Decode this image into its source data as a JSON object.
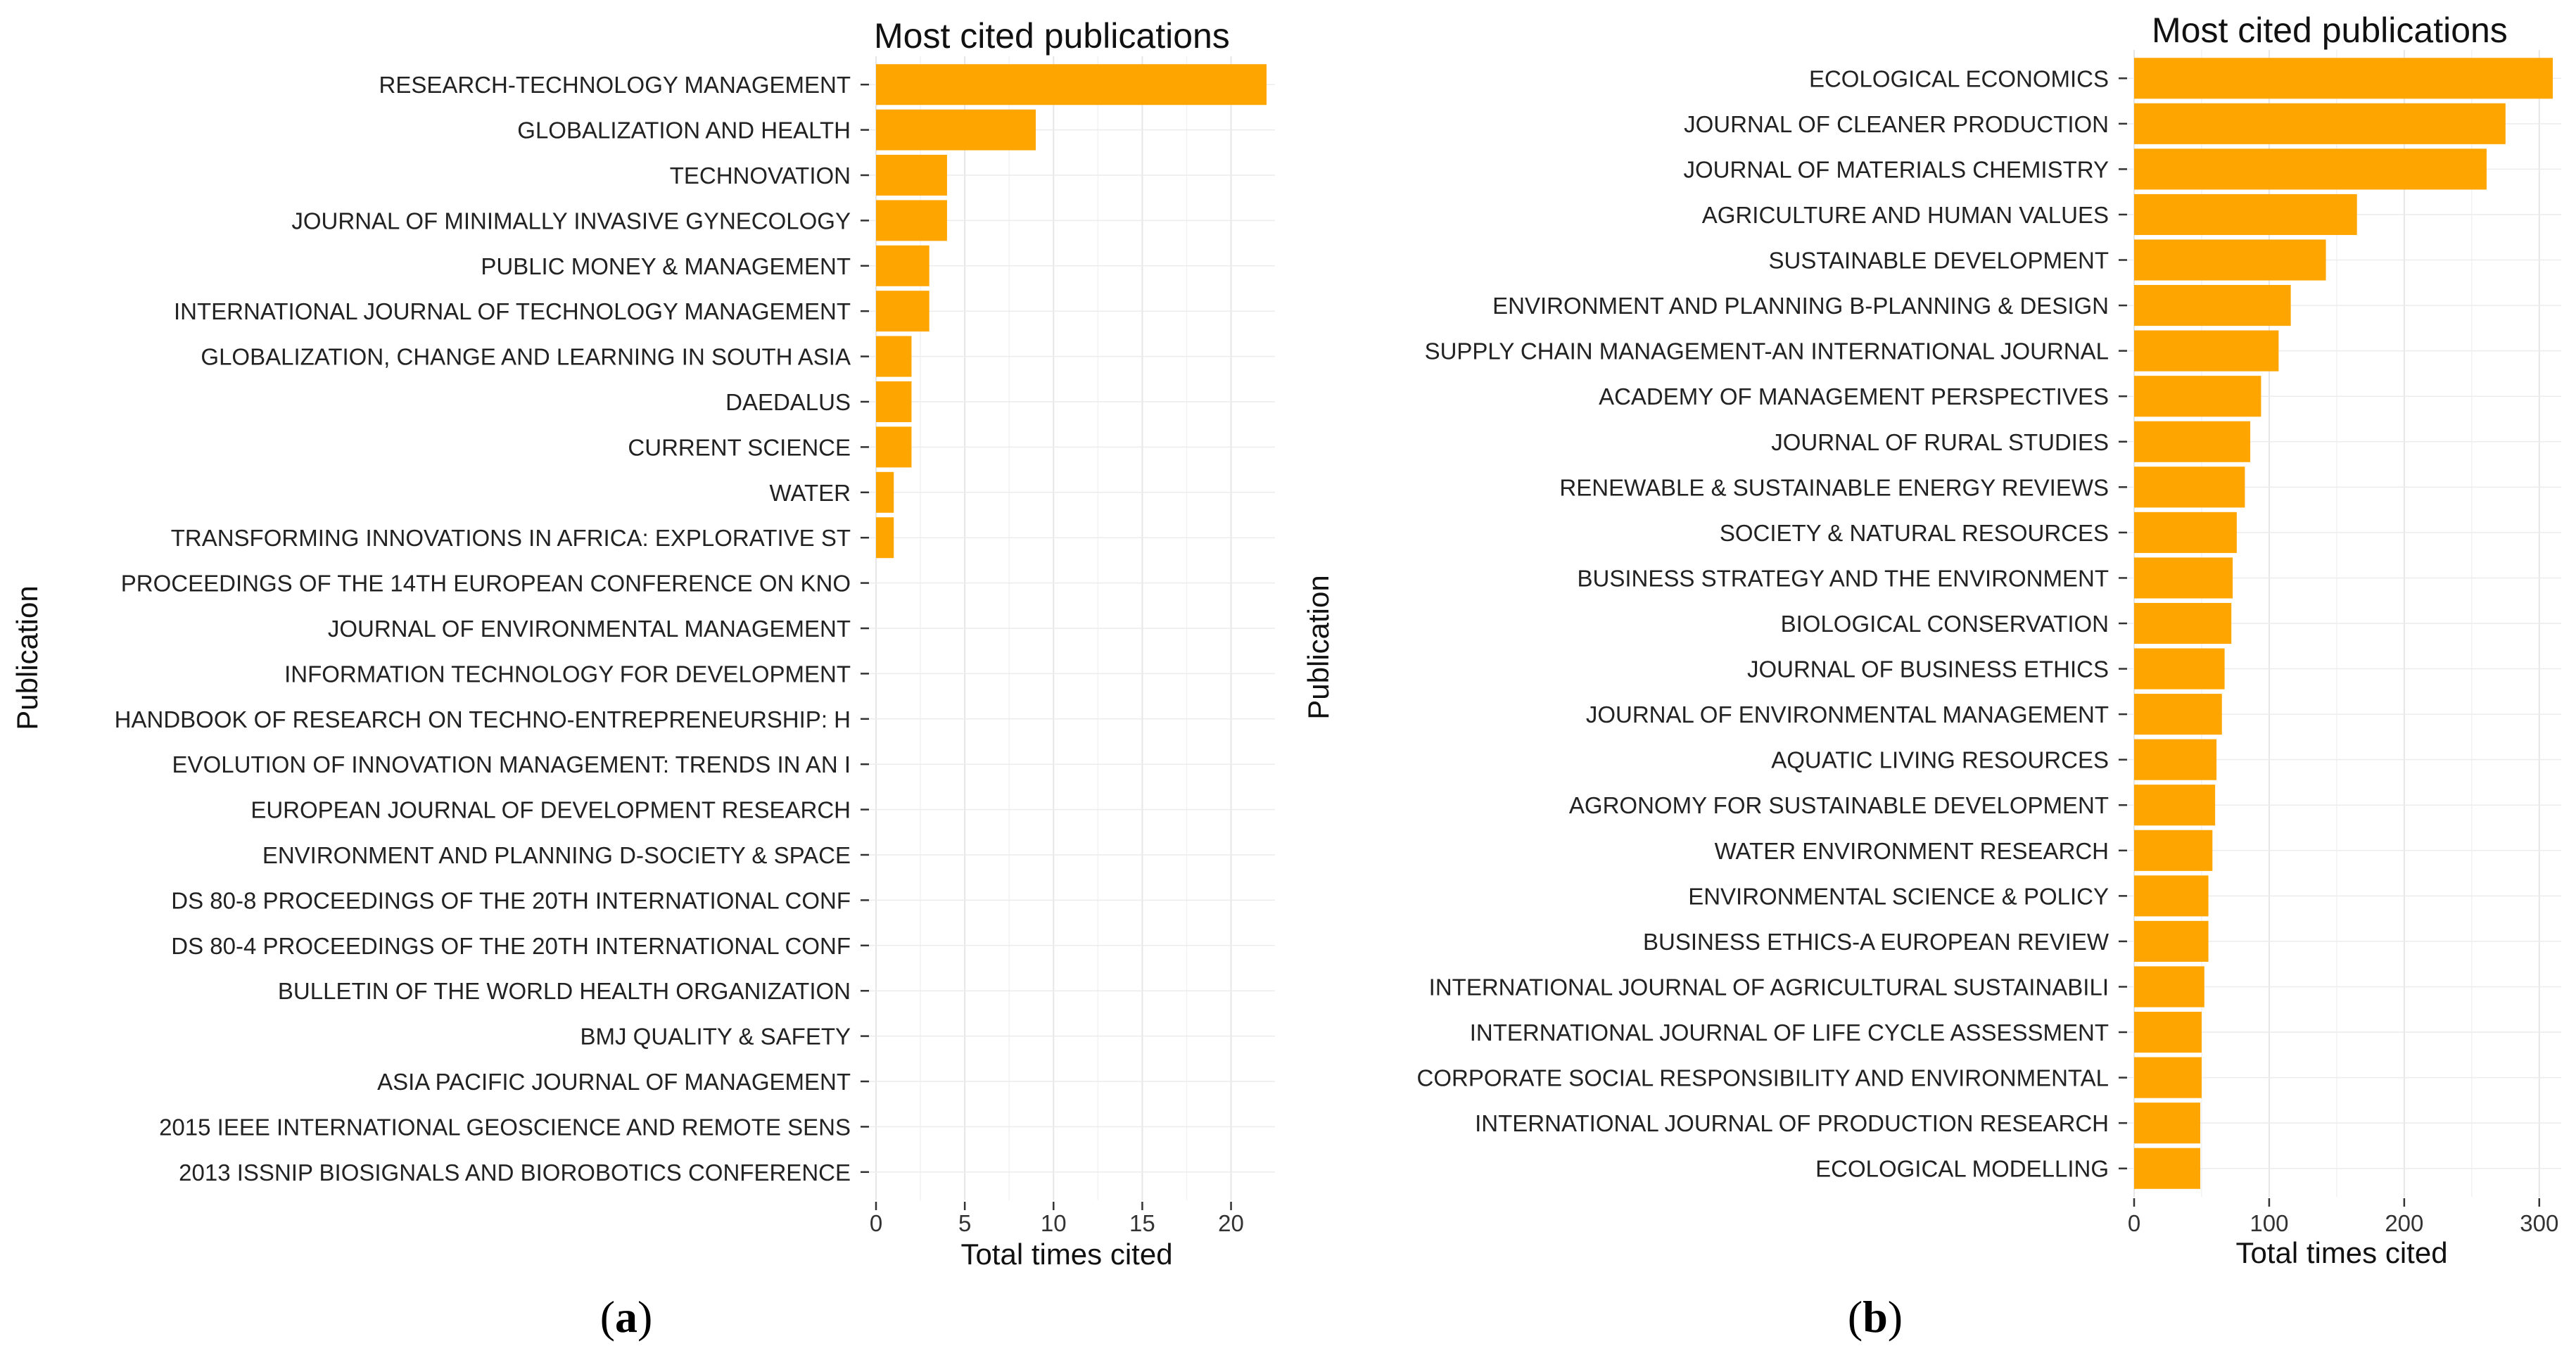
{
  "chart_data": [
    {
      "type": "bar",
      "orientation": "horizontal",
      "panel_label": "a",
      "title": "Most cited publications",
      "xlabel": "Total times cited",
      "ylabel": "Publication",
      "xlim": [
        0,
        22
      ],
      "xticks": [
        0,
        5,
        10,
        15,
        20
      ],
      "bar_color": "#FFA500",
      "grid": true,
      "categories": [
        "RESEARCH-TECHNOLOGY MANAGEMENT",
        "GLOBALIZATION AND HEALTH",
        "TECHNOVATION",
        "JOURNAL OF MINIMALLY INVASIVE GYNECOLOGY",
        "PUBLIC MONEY & MANAGEMENT",
        "INTERNATIONAL JOURNAL OF TECHNOLOGY MANAGEMENT",
        "GLOBALIZATION, CHANGE AND LEARNING IN SOUTH ASIA",
        "DAEDALUS",
        "CURRENT SCIENCE",
        "WATER",
        "TRANSFORMING INNOVATIONS IN AFRICA: EXPLORATIVE ST",
        "PROCEEDINGS OF THE 14TH EUROPEAN CONFERENCE ON KNO",
        "JOURNAL OF ENVIRONMENTAL MANAGEMENT",
        "INFORMATION TECHNOLOGY FOR DEVELOPMENT",
        "HANDBOOK OF RESEARCH ON TECHNO-ENTREPRENEURSHIP: H",
        "EVOLUTION OF INNOVATION MANAGEMENT: TRENDS IN AN I",
        "EUROPEAN JOURNAL OF DEVELOPMENT RESEARCH",
        "ENVIRONMENT AND PLANNING D-SOCIETY & SPACE",
        "DS 80-8 PROCEEDINGS OF THE 20TH INTERNATIONAL CONF",
        "DS 80-4 PROCEEDINGS OF THE 20TH INTERNATIONAL CONF",
        "BULLETIN OF THE WORLD HEALTH ORGANIZATION",
        "BMJ QUALITY & SAFETY",
        "ASIA PACIFIC JOURNAL OF MANAGEMENT",
        "2015 IEEE INTERNATIONAL GEOSCIENCE AND REMOTE SENS",
        "2013 ISSNIP BIOSIGNALS AND BIOROBOTICS CONFERENCE"
      ],
      "values": [
        22,
        9,
        4,
        4,
        3,
        3,
        2,
        2,
        2,
        1,
        1,
        0,
        0,
        0,
        0,
        0,
        0,
        0,
        0,
        0,
        0,
        0,
        0,
        0,
        0
      ]
    },
    {
      "type": "bar",
      "orientation": "horizontal",
      "panel_label": "b",
      "title": "Most cited publications",
      "xlabel": "Total times cited",
      "ylabel": "Publication",
      "xlim": [
        0,
        310
      ],
      "xticks": [
        0,
        100,
        200,
        300
      ],
      "bar_color": "#FFA500",
      "grid": true,
      "categories": [
        "ECOLOGICAL ECONOMICS",
        "JOURNAL OF CLEANER PRODUCTION",
        "JOURNAL OF MATERIALS CHEMISTRY",
        "AGRICULTURE AND HUMAN VALUES",
        "SUSTAINABLE DEVELOPMENT",
        "ENVIRONMENT AND PLANNING B-PLANNING & DESIGN",
        "SUPPLY CHAIN MANAGEMENT-AN INTERNATIONAL JOURNAL",
        "ACADEMY OF MANAGEMENT PERSPECTIVES",
        "JOURNAL OF RURAL STUDIES",
        "RENEWABLE & SUSTAINABLE ENERGY REVIEWS",
        "SOCIETY & NATURAL RESOURCES",
        "BUSINESS STRATEGY AND THE ENVIRONMENT",
        "BIOLOGICAL CONSERVATION",
        "JOURNAL OF BUSINESS ETHICS",
        "JOURNAL OF ENVIRONMENTAL MANAGEMENT",
        "AQUATIC LIVING RESOURCES",
        "AGRONOMY FOR SUSTAINABLE DEVELOPMENT",
        "WATER ENVIRONMENT RESEARCH",
        "ENVIRONMENTAL SCIENCE & POLICY",
        "BUSINESS ETHICS-A EUROPEAN REVIEW",
        "INTERNATIONAL JOURNAL OF AGRICULTURAL SUSTAINABILI",
        "INTERNATIONAL JOURNAL OF LIFE CYCLE ASSESSMENT",
        "CORPORATE SOCIAL RESPONSIBILITY AND ENVIRONMENTAL",
        "INTERNATIONAL JOURNAL OF PRODUCTION RESEARCH",
        "ECOLOGICAL MODELLING"
      ],
      "values": [
        310,
        275,
        261,
        165,
        142,
        116,
        107,
        94,
        86,
        82,
        76,
        73,
        72,
        67,
        65,
        61,
        60,
        58,
        55,
        55,
        52,
        50,
        50,
        49,
        49
      ]
    }
  ]
}
